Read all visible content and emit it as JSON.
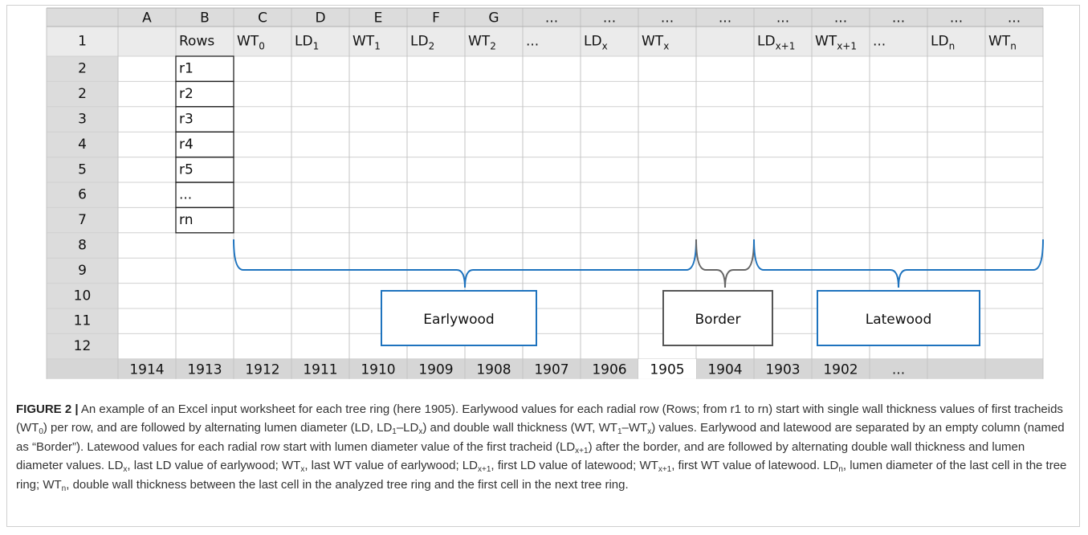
{
  "sheet": {
    "columns": [
      "A",
      "B",
      "C",
      "D",
      "E",
      "F",
      "G",
      "...",
      "...",
      "...",
      "...",
      "...",
      "...",
      "...",
      "...",
      "..."
    ],
    "header_row_number": "1",
    "header_row": [
      null,
      "Rows",
      {
        "text": "WT",
        "sub": "0"
      },
      {
        "text": "LD",
        "sub": "1"
      },
      {
        "text": "WT",
        "sub": "1"
      },
      {
        "text": "LD",
        "sub": "2"
      },
      {
        "text": "WT",
        "sub": "2"
      },
      "...",
      {
        "text": "LD",
        "sub": "x"
      },
      {
        "text": "WT",
        "sub": "x"
      },
      null,
      {
        "text": "LD",
        "sub": "x+1"
      },
      {
        "text": "WT",
        "sub": "x+1"
      },
      "...",
      {
        "text": "LD",
        "sub": "n"
      },
      {
        "text": "WT",
        "sub": "n"
      }
    ],
    "row_numbers": [
      "2",
      "2",
      "3",
      "4",
      "5",
      "6",
      "7",
      "8",
      "9",
      "10",
      "11",
      "12"
    ],
    "rows_column": [
      "r1",
      "r2",
      "r3",
      "r4",
      "r5",
      "...",
      "rn"
    ],
    "tabs": [
      null,
      "1914",
      "1913",
      "1912",
      "1911",
      "1910",
      "1909",
      "1908",
      "1907",
      "1906",
      "1905",
      "1904",
      "1903",
      "1902",
      "...",
      null,
      null
    ],
    "active_tab_index": 10
  },
  "annotations": {
    "earlywood": "Earlywood",
    "border": "Border",
    "latewood": "Latewood"
  },
  "caption": {
    "label": "FIGURE 2 |",
    "parts": [
      " An example of an Excel input worksheet for each tree ring (here 1905). Earlywood values for each radial row (Rows; from r1 to rn) start with single wall thickness values of first tracheids (WT",
      {
        "sub": "0"
      },
      ") per row, and are followed by alternating lumen diameter (LD, LD",
      {
        "sub": "1"
      },
      "–LD",
      {
        "sub": "x"
      },
      ") and double wall thickness (WT, WT",
      {
        "sub": "1"
      },
      "–WT",
      {
        "sub": "x"
      },
      ") values. Earlywood and latewood are separated by an empty column (named as “Border”). Latewood values for each radial row start with lumen diameter value of the first tracheid (LD",
      {
        "sub": "x+1"
      },
      ") after the border, and are followed by alternating double wall thickness and lumen diameter values. LD",
      {
        "sub": "x"
      },
      ", last LD value of earlywood; WT",
      {
        "sub": "x"
      },
      ", last WT value of earlywood; LD",
      {
        "sub": "x+1"
      },
      ", first LD value of latewood; WT",
      {
        "sub": "x+1"
      },
      ", first WT value of latewood. LD",
      {
        "sub": "n"
      },
      ", lumen diameter of the last cell in the tree ring; WT",
      {
        "sub": "n"
      },
      ", double wall thickness between the last cell in the analyzed tree ring and the first cell in the next tree ring."
    ]
  }
}
